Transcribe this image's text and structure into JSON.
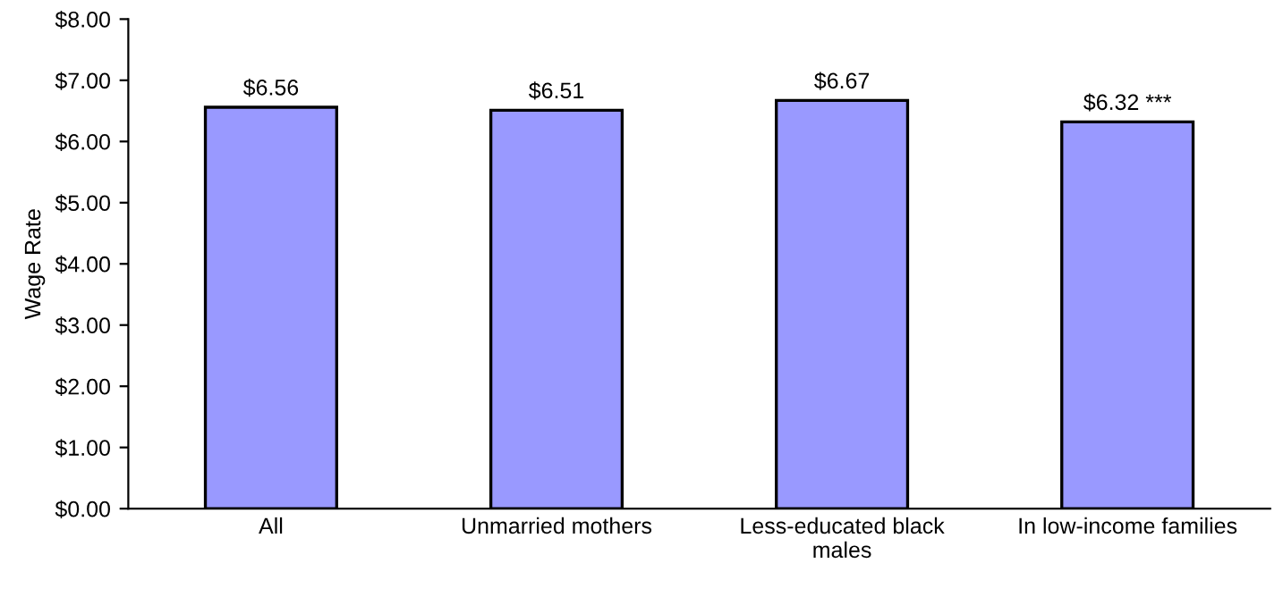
{
  "chart_data": {
    "type": "bar",
    "ylabel": "Wage Rate",
    "categories": [
      "All",
      "Unmarried mothers",
      "Less-educated black\nmales",
      "In low-income families"
    ],
    "values": [
      6.56,
      6.51,
      6.67,
      6.32
    ],
    "value_labels": [
      "$6.56",
      "$6.51",
      "$6.67",
      "$6.32 ***"
    ],
    "color": "#9999ff",
    "ylim": [
      0,
      8
    ],
    "yticks": [
      {
        "value": 0,
        "label": "$0.00"
      },
      {
        "value": 1,
        "label": "$1.00"
      },
      {
        "value": 2,
        "label": "$2.00"
      },
      {
        "value": 3,
        "label": "$3.00"
      },
      {
        "value": 4,
        "label": "$4.00"
      },
      {
        "value": 5,
        "label": "$5.00"
      },
      {
        "value": 6,
        "label": "$6.00"
      },
      {
        "value": 7,
        "label": "$7.00"
      },
      {
        "value": 8,
        "label": "$8.00"
      }
    ],
    "grid": false
  }
}
